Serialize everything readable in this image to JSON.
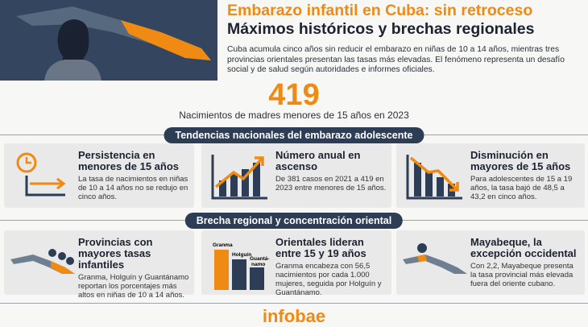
{
  "header": {
    "title": "Embarazo infantil en Cuba: sin retroceso",
    "subtitle": "Máximos históricos y brechas regionales",
    "intro": "Cuba acumula cinco años sin reducir el embarazo en niñas de 10 a 14 años, mientras tres provincias orientales presentan las tasas más elevadas. El fenómeno representa un desafío social y de salud según autoridades e informes oficiales."
  },
  "highlight": {
    "number": 419,
    "caption": "Nacimientos de madres menores de 15 años en 2023"
  },
  "sections": [
    {
      "title": "Tendencias nacionales del embarazo adolescente",
      "cards": [
        {
          "title": "Persistencia en menores de 15 años",
          "text": "La tasa de nacimientos en niñas de 10 a 14 años no se redujo en cinco años."
        },
        {
          "title": "Número anual en ascenso",
          "text": "De 381 casos en 2021 a 419 en 2023 entre menores de 15 años."
        },
        {
          "title": "Disminución en mayores de 15 años",
          "text": "Para adolescentes de 15 a 19 años, la tasa bajó de 48,5 a 43,2 en cinco años."
        }
      ]
    },
    {
      "title": "Brecha regional y concentración oriental",
      "cards": [
        {
          "title": "Provincias con mayores tasas infantiles",
          "text": "Granma, Holguín y Guantánamo reportan los porcentajes más altos en niñas de 10 a 14 años."
        },
        {
          "title": "Orientales lideran entre 15 y 19 años",
          "text": "Granma encabeza con 56,5 nacimientos por cada 1.000 mujeres, seguida por Holguín y Guantánamo."
        },
        {
          "title": "Mayabeque, la excepción occidental",
          "text": "Con 2,2, Mayabeque presenta la tasa provincial más elevada fuera del oriente cubano."
        }
      ]
    }
  ],
  "icon_labels": [
    "Granma",
    "Holguín",
    "Guantá-",
    "namo"
  ],
  "footer": {
    "brand": "infobae"
  }
}
